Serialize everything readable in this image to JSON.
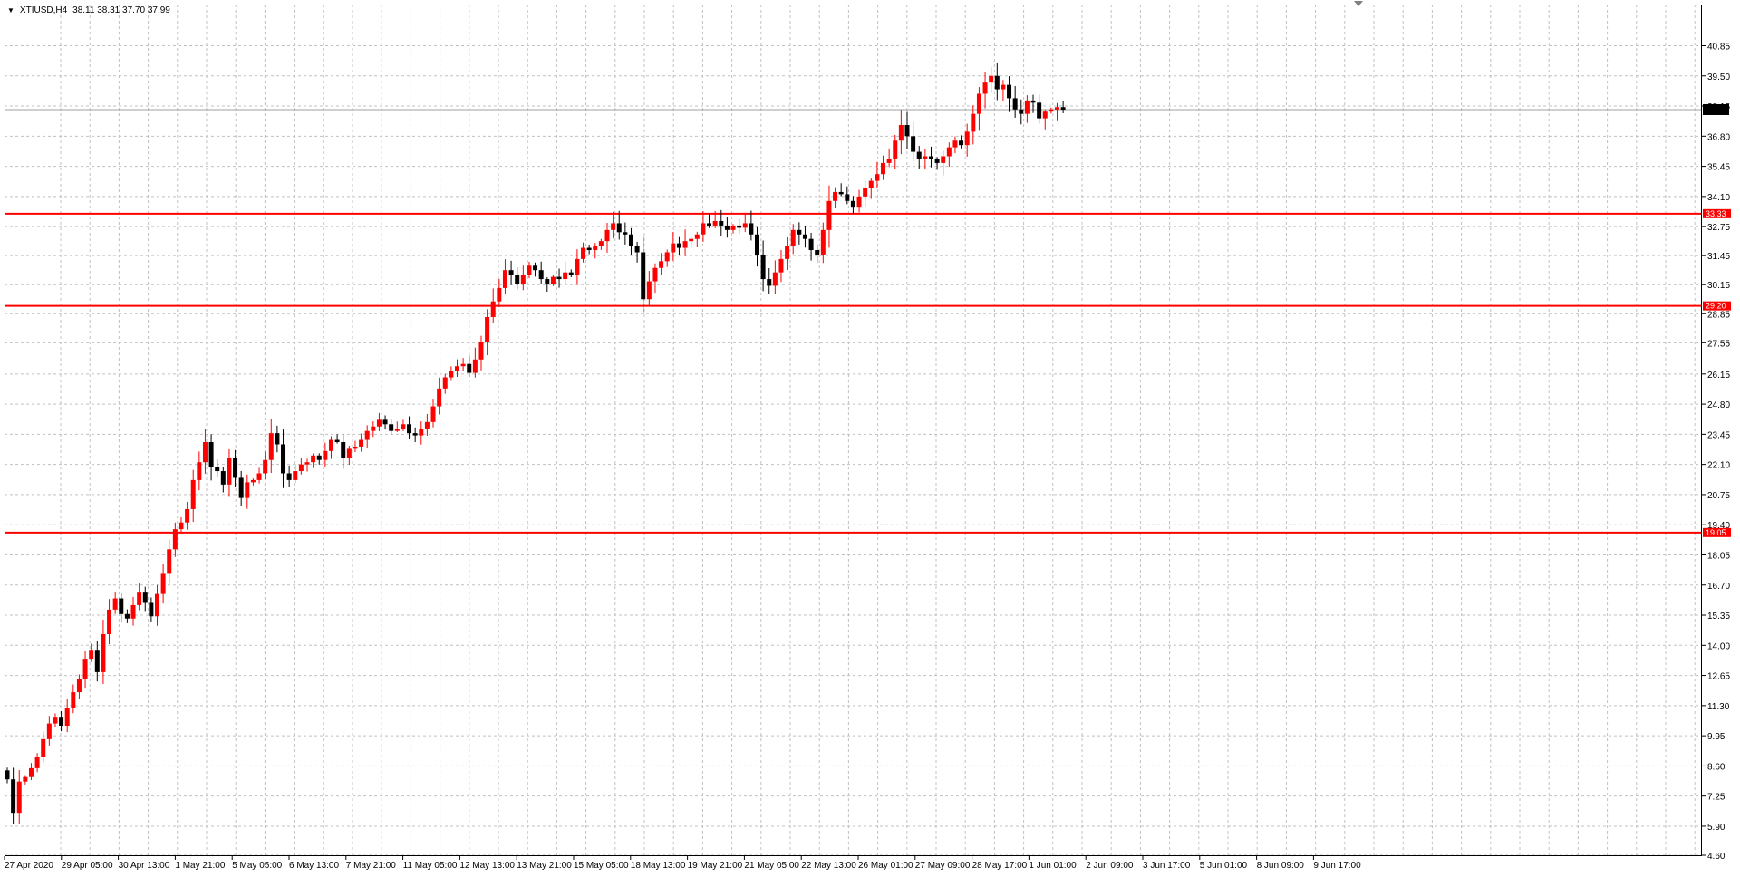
{
  "header": {
    "symbol": "XTIUSD,H4",
    "ohlc": "38.11 38.31 37.70 37.99",
    "dropdown_icon": "triangle-down-icon"
  },
  "colors": {
    "bull": "#ff0000",
    "bear": "#000000",
    "level_line": "#ff0000",
    "grid": "#c0c0c0",
    "bid_line": "#a0a0a0",
    "background": "#ffffff"
  },
  "chart_data": {
    "type": "candlestick",
    "title": "XTIUSD,H4",
    "ylim": [
      4.6,
      41.6
    ],
    "y_ticks": [
      "40.85",
      "39.50",
      "38.15",
      "36.80",
      "35.45",
      "34.10",
      "32.75",
      "31.45",
      "30.15",
      "28.85",
      "27.55",
      "26.15",
      "24.80",
      "23.45",
      "22.10",
      "20.75",
      "19.40",
      "18.05",
      "16.70",
      "15.35",
      "14.00",
      "12.65",
      "11.30",
      "9.95",
      "8.60",
      "7.25",
      "5.90",
      "4.60"
    ],
    "x_labels": [
      "27 Apr 2020",
      "29 Apr 05:00",
      "30 Apr 13:00",
      "1 May 21:00",
      "5 May 05:00",
      "6 May 13:00",
      "7 May 21:00",
      "11 May 05:00",
      "12 May 13:00",
      "13 May 21:00",
      "15 May 05:00",
      "18 May 13:00",
      "19 May 21:00",
      "21 May 05:00",
      "22 May 13:00",
      "26 May 01:00",
      "27 May 09:00",
      "28 May 17:00",
      "1 Jun 01:00",
      "2 Jun 09:00",
      "3 Jun 17:00",
      "5 Jun 01:00",
      "8 Jun 09:00",
      "9 Jun 17:00"
    ],
    "grid": true,
    "current_price": "37.99",
    "levels": [
      {
        "value": 33.33,
        "label": "33.33"
      },
      {
        "value": 29.2,
        "label": "29.20"
      },
      {
        "value": 19.05,
        "label": "19.05"
      }
    ],
    "close_series": [
      8.0,
      6.5,
      7.9,
      8.1,
      8.5,
      9.0,
      9.8,
      10.5,
      10.8,
      10.4,
      11.2,
      11.9,
      12.5,
      13.4,
      13.8,
      12.8,
      14.5,
      15.6,
      16.1,
      15.4,
      15.2,
      15.8,
      16.4,
      15.9,
      15.3,
      16.3,
      17.2,
      18.3,
      19.2,
      19.5,
      20.1,
      21.4,
      22.2,
      23.1,
      22.0,
      21.8,
      21.2,
      22.4,
      21.5,
      20.6,
      21.3,
      21.4,
      21.7,
      22.3,
      23.5,
      23.0,
      21.7,
      21.4,
      21.8,
      22.1,
      22.2,
      22.5,
      22.3,
      22.7,
      23.2,
      23.1,
      22.4,
      22.8,
      22.9,
      23.2,
      23.6,
      23.8,
      24.1,
      23.9,
      23.6,
      23.7,
      23.9,
      23.5,
      23.4,
      23.7,
      24.0,
      24.7,
      25.5,
      26.0,
      26.3,
      26.5,
      26.6,
      26.2,
      26.8,
      27.6,
      28.7,
      29.4,
      30.0,
      30.8,
      30.6,
      30.2,
      30.6,
      31.0,
      30.8,
      30.4,
      30.2,
      30.5,
      30.4,
      30.7,
      30.6,
      31.3,
      31.8,
      31.7,
      31.9,
      32.1,
      32.6,
      32.9,
      32.5,
      32.4,
      31.9,
      31.6,
      29.5,
      30.3,
      30.9,
      31.2,
      31.6,
      32.0,
      31.8,
      32.1,
      32.2,
      32.4,
      32.9,
      32.8,
      33.0,
      32.8,
      32.6,
      32.8,
      32.7,
      32.9,
      32.4,
      31.5,
      30.4,
      30.1,
      30.7,
      31.3,
      31.9,
      32.6,
      32.4,
      32.2,
      31.7,
      31.5,
      32.6,
      33.9,
      34.3,
      34.2,
      33.9,
      33.6,
      34.1,
      34.5,
      34.8,
      35.1,
      35.6,
      35.8,
      36.6,
      37.3,
      36.8,
      36.1,
      35.8,
      35.9,
      35.8,
      35.6,
      35.9,
      36.3,
      36.6,
      36.4,
      37.0,
      37.8,
      38.7,
      39.2,
      39.5,
      38.9,
      39.1,
      38.5,
      38.0,
      37.8,
      38.4,
      38.3,
      37.6,
      37.9,
      38.0,
      38.1,
      37.99
    ],
    "range_pct": 0.0085,
    "noise_seed": 1
  }
}
